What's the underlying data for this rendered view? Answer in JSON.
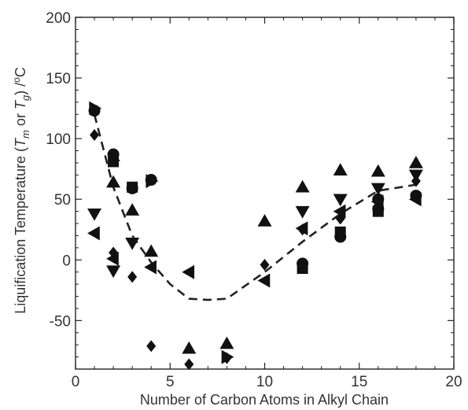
{
  "chart_data": {
    "type": "scatter",
    "title": "",
    "xlabel": "Number of Carbon Atoms in Alkyl Chain",
    "ylabel": {
      "prefix": "Liquification Temperature (",
      "tm": "T",
      "tm_sub": "m",
      "or": " or ",
      "tg": "T",
      "tg_sub": "g",
      "suffix": ") /",
      "deg": "o",
      "unit": "C"
    },
    "xlim": [
      0,
      20
    ],
    "ylim": [
      -90,
      200
    ],
    "x_ticks": [
      "0",
      "5",
      "10",
      "15",
      "20"
    ],
    "y_ticks": [
      "-50",
      "0",
      "50",
      "100",
      "150",
      "200"
    ],
    "grid": false,
    "legend": "none",
    "marker_color": "#111111",
    "series": [
      {
        "marker": "circle",
        "points": [
          [
            1,
            123
          ],
          [
            2,
            87
          ],
          [
            3,
            59
          ],
          [
            4,
            66
          ],
          [
            12,
            -3
          ],
          [
            14,
            19
          ],
          [
            16,
            50
          ],
          [
            16,
            42
          ],
          [
            18,
            53
          ]
        ]
      },
      {
        "marker": "square",
        "points": [
          [
            2,
            81
          ],
          [
            3,
            60
          ],
          [
            12,
            -7
          ],
          [
            14,
            23
          ],
          [
            16,
            40
          ]
        ]
      },
      {
        "marker": "triangle-up",
        "points": [
          [
            2,
            64
          ],
          [
            3,
            41
          ],
          [
            4,
            7
          ],
          [
            6,
            -73
          ],
          [
            8,
            -69
          ],
          [
            10,
            32
          ],
          [
            12,
            60
          ],
          [
            14,
            74
          ],
          [
            16,
            73
          ],
          [
            18,
            80
          ]
        ]
      },
      {
        "marker": "triangle-down",
        "points": [
          [
            1,
            38
          ],
          [
            2,
            -9
          ],
          [
            3,
            14
          ],
          [
            12,
            40
          ],
          [
            14,
            50
          ],
          [
            16,
            59
          ],
          [
            18,
            70
          ]
        ]
      },
      {
        "marker": "triangle-left",
        "points": [
          [
            1,
            22
          ],
          [
            2,
            1
          ],
          [
            4,
            -6
          ],
          [
            6,
            -10
          ],
          [
            10,
            -17
          ],
          [
            12,
            26
          ],
          [
            14,
            40
          ],
          [
            16,
            48
          ],
          [
            18,
            50
          ]
        ]
      },
      {
        "marker": "triangle-right",
        "points": [
          [
            1,
            125
          ],
          [
            2,
            82
          ],
          [
            4,
            65
          ],
          [
            8,
            -80
          ]
        ]
      },
      {
        "marker": "diamond",
        "points": [
          [
            1,
            103
          ],
          [
            2,
            6
          ],
          [
            3,
            -14
          ],
          [
            4,
            -71
          ],
          [
            6,
            -86
          ],
          [
            8,
            -81
          ],
          [
            10,
            -4
          ],
          [
            12,
            25
          ],
          [
            14,
            34
          ],
          [
            18,
            65
          ]
        ]
      }
    ],
    "trend": {
      "style": "dashed",
      "x": [
        1,
        2,
        3,
        4,
        5,
        6,
        7,
        8,
        10,
        12,
        14,
        16,
        18
      ],
      "y": [
        120,
        60,
        20,
        -2,
        -20,
        -32,
        -33,
        -32,
        -10,
        15,
        38,
        57,
        62
      ]
    }
  }
}
